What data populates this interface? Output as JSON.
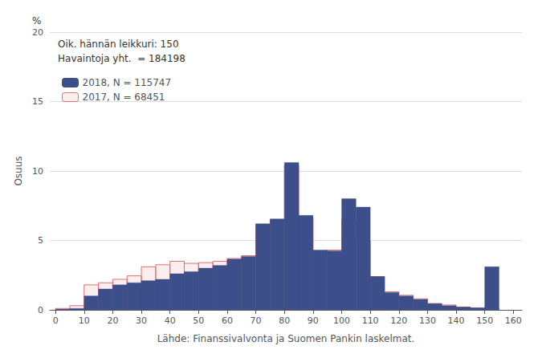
{
  "chart_data": {
    "type": "histogram",
    "xlabel": "Lähde: Finanssivalvonta ja Suomen Pankin laskelmat.",
    "ylabel": "Osuus",
    "annotations": [
      "%",
      "Oik. hännän leikkuri: 150",
      "Havaintoja yht.  = 184198"
    ],
    "bins": [
      0,
      5,
      10,
      15,
      20,
      25,
      30,
      35,
      40,
      45,
      50,
      55,
      60,
      65,
      70,
      75,
      80,
      85,
      90,
      95,
      100,
      105,
      110,
      115,
      120,
      125,
      130,
      135,
      140,
      145,
      150,
      155
    ],
    "series": [
      {
        "name": "2018, N = 115747",
        "color": "#3d4f8a",
        "values": [
          0.05,
          0.1,
          1.0,
          1.5,
          1.8,
          1.95,
          2.1,
          2.2,
          2.6,
          2.75,
          3.0,
          3.2,
          3.65,
          3.85,
          6.2,
          6.55,
          10.6,
          6.8,
          4.3,
          4.25,
          8.0,
          7.4,
          2.4,
          1.25,
          1.0,
          0.75,
          0.45,
          0.3,
          0.2,
          0.15,
          3.1
        ]
      },
      {
        "name": "2017, N = 68451",
        "color": "#e07070",
        "values": [
          0.1,
          0.3,
          1.8,
          1.95,
          2.2,
          2.45,
          3.1,
          3.25,
          3.5,
          3.35,
          3.4,
          3.5,
          3.7,
          3.9,
          6.15,
          6.45,
          10.4,
          6.65,
          4.25,
          4.3,
          6.5,
          5.0,
          2.4,
          1.3,
          1.05,
          0.8,
          0.45,
          0.35,
          0.2,
          0.12,
          0.08
        ]
      }
    ],
    "xlim": [
      -2,
      163
    ],
    "xticks": [
      0,
      10,
      20,
      30,
      40,
      50,
      60,
      70,
      80,
      90,
      100,
      110,
      120,
      130,
      140,
      150,
      160
    ],
    "ylim": [
      0,
      20
    ],
    "yticks": [
      0,
      5,
      10,
      15,
      20
    ],
    "grid": true,
    "legend": "upper left"
  }
}
